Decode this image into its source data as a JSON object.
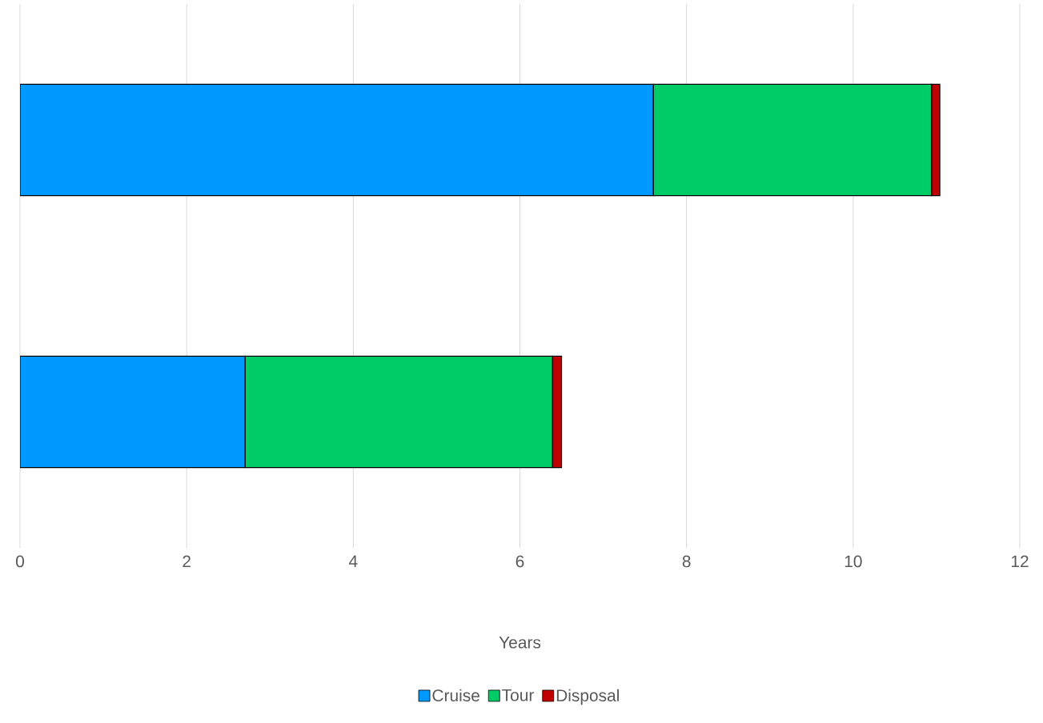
{
  "chart_data": {
    "type": "bar",
    "orientation": "horizontal",
    "stacked": true,
    "xlabel": "Years",
    "categories": [
      null,
      null
    ],
    "series": [
      {
        "name": "Cruise",
        "color": "#0099ff",
        "values": [
          7.6,
          2.7
        ]
      },
      {
        "name": "Tour",
        "color": "#00cc66",
        "values": [
          3.34,
          3.69
        ]
      },
      {
        "name": "Disposal",
        "color": "#c00000",
        "values": [
          0.1,
          0.11
        ]
      }
    ],
    "xlim": [
      0,
      12
    ],
    "xticks": [
      0,
      2,
      4,
      6,
      8,
      10,
      12
    ],
    "grid": "x",
    "legend": "bottom"
  }
}
